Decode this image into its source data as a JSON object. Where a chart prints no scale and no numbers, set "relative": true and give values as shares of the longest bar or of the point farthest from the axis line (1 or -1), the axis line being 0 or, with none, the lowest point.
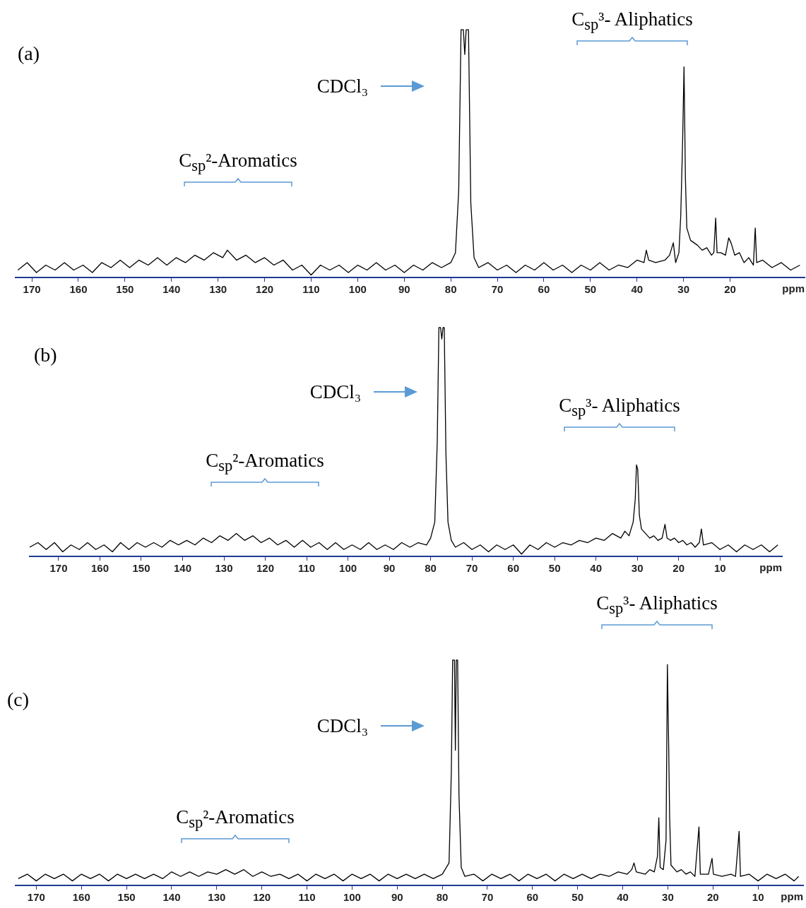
{
  "chart_data": [
    {
      "type": "line",
      "title": "(a)",
      "xlabel": "ppm",
      "relative": true,
      "marker": "none",
      "xlim": [
        173.5,
        4
      ],
      "xticks": [
        170,
        160,
        150,
        140,
        130,
        120,
        110,
        100,
        90,
        80,
        70,
        60,
        50,
        40,
        30,
        20
      ],
      "annotations": [
        "CDCl₃",
        "C$_{sp}$²-Aromatics",
        "C$_{sp}$³- Aliphatics"
      ],
      "x": [
        173,
        171,
        169,
        167,
        165,
        163,
        161,
        159,
        157,
        155,
        153,
        151,
        149,
        147,
        145,
        143,
        141,
        139,
        137,
        135,
        133,
        131,
        129,
        128,
        126,
        124,
        122,
        120,
        118,
        116,
        114,
        112,
        110,
        108,
        106,
        104,
        102,
        100,
        98,
        96,
        94,
        92,
        90,
        88,
        86,
        84,
        82,
        80,
        79,
        78.3,
        77.8,
        77.3,
        77,
        76.7,
        76.2,
        75.7,
        75,
        74,
        72,
        70,
        68,
        66,
        64,
        62,
        60,
        58,
        56,
        54,
        52,
        50,
        48,
        46,
        44,
        42,
        40,
        38.5,
        38,
        37.5,
        36,
        34,
        33,
        32.2,
        31.7,
        31,
        30.6,
        30.2,
        29.9,
        29.6,
        29.3,
        28.5,
        27,
        26,
        25,
        24,
        23.5,
        23.1,
        22.8,
        22,
        21,
        20.3,
        19.8,
        19,
        18,
        17,
        16,
        15,
        14.6,
        14.3,
        13,
        11,
        9,
        7,
        5
      ],
      "series": [
        {
          "color": "#000000",
          "values": [
            0.03,
            0.06,
            0.02,
            0.05,
            0.03,
            0.06,
            0.03,
            0.05,
            0.02,
            0.06,
            0.04,
            0.07,
            0.04,
            0.07,
            0.05,
            0.08,
            0.05,
            0.08,
            0.06,
            0.09,
            0.07,
            0.1,
            0.08,
            0.11,
            0.07,
            0.09,
            0.06,
            0.08,
            0.05,
            0.07,
            0.03,
            0.05,
            0.01,
            0.05,
            0.03,
            0.05,
            0.02,
            0.05,
            0.03,
            0.06,
            0.03,
            0.05,
            0.02,
            0.05,
            0.03,
            0.06,
            0.04,
            0.06,
            0.1,
            0.35,
            1,
            1,
            0.9,
            1,
            1,
            0.3,
            0.08,
            0.04,
            0.06,
            0.03,
            0.05,
            0.02,
            0.05,
            0.03,
            0.06,
            0.03,
            0.05,
            0.02,
            0.05,
            0.03,
            0.06,
            0.03,
            0.05,
            0.04,
            0.07,
            0.06,
            0.11,
            0.07,
            0.06,
            0.07,
            0.09,
            0.14,
            0.06,
            0.1,
            0.25,
            0.55,
            0.85,
            0.4,
            0.2,
            0.15,
            0.13,
            0.11,
            0.12,
            0.09,
            0.1,
            0.24,
            0.1,
            0.1,
            0.09,
            0.16,
            0.14,
            0.09,
            0.1,
            0.06,
            0.08,
            0.05,
            0.2,
            0.06,
            0.07,
            0.04,
            0.06,
            0.03,
            0.05
          ]
        }
      ]
    },
    {
      "type": "line",
      "title": "(b)",
      "xlabel": "ppm",
      "relative": true,
      "marker": "none",
      "xlim": [
        177,
        -5
      ],
      "xticks": [
        170,
        160,
        150,
        140,
        130,
        120,
        110,
        100,
        90,
        80,
        70,
        60,
        50,
        40,
        30,
        20,
        10
      ],
      "annotations": [
        "CDCl₃",
        "C$_{sp}$²-Aromatics",
        "C$_{sp}$³- Aliphatics"
      ],
      "x": [
        177,
        175,
        173,
        171,
        169,
        167,
        165,
        163,
        161,
        159,
        157,
        155,
        153,
        151,
        149,
        147,
        145,
        143,
        141,
        139,
        137,
        135,
        133,
        131,
        129,
        127,
        125,
        123,
        121,
        119,
        117,
        115,
        113,
        111,
        109,
        107,
        105,
        103,
        101,
        99,
        97,
        95,
        93,
        91,
        89,
        87,
        85,
        83,
        81,
        80,
        79,
        78.4,
        78,
        77.6,
        77.3,
        77,
        76.7,
        76.3,
        75.8,
        75,
        74,
        72,
        70,
        68,
        66,
        64,
        62,
        60,
        58,
        56,
        54,
        52,
        50,
        48,
        46,
        44,
        42,
        40,
        38,
        36,
        34,
        33,
        32,
        31,
        30.5,
        30.2,
        29.9,
        29.5,
        29,
        28,
        27,
        26,
        25,
        24,
        23.3,
        22.8,
        22,
        21,
        20,
        19,
        18,
        17,
        16,
        15,
        14.5,
        14,
        12,
        10,
        8,
        6,
        4,
        2,
        0,
        -2,
        -4
      ],
      "series": [
        {
          "color": "#000000",
          "values": [
            0.04,
            0.06,
            0.03,
            0.06,
            0.02,
            0.05,
            0.03,
            0.06,
            0.03,
            0.05,
            0.02,
            0.06,
            0.03,
            0.06,
            0.04,
            0.06,
            0.04,
            0.07,
            0.05,
            0.07,
            0.05,
            0.08,
            0.06,
            0.09,
            0.07,
            0.1,
            0.07,
            0.09,
            0.06,
            0.08,
            0.05,
            0.07,
            0.04,
            0.07,
            0.04,
            0.06,
            0.03,
            0.06,
            0.03,
            0.05,
            0.03,
            0.06,
            0.03,
            0.05,
            0.03,
            0.06,
            0.04,
            0.06,
            0.05,
            0.08,
            0.15,
            0.5,
            1,
            1,
            0.95,
            1,
            1,
            0.45,
            0.15,
            0.07,
            0.04,
            0.06,
            0.03,
            0.05,
            0.02,
            0.05,
            0.03,
            0.05,
            0.01,
            0.05,
            0.03,
            0.06,
            0.04,
            0.06,
            0.05,
            0.07,
            0.06,
            0.08,
            0.07,
            0.1,
            0.08,
            0.11,
            0.09,
            0.15,
            0.25,
            0.4,
            0.38,
            0.18,
            0.12,
            0.1,
            0.08,
            0.09,
            0.07,
            0.08,
            0.14,
            0.08,
            0.07,
            0.08,
            0.06,
            0.07,
            0.05,
            0.06,
            0.04,
            0.06,
            0.12,
            0.05,
            0.06,
            0.03,
            0.05,
            0.02,
            0.05,
            0.03,
            0.05,
            0.02,
            0.05
          ]
        }
      ]
    },
    {
      "type": "line",
      "title": "(c)",
      "xlabel": "ppm",
      "relative": true,
      "marker": "none",
      "xlim": [
        174.6,
        0
      ],
      "xticks": [
        170,
        160,
        150,
        140,
        130,
        120,
        110,
        100,
        90,
        80,
        70,
        60,
        50,
        40,
        30,
        20,
        10
      ],
      "annotations": [
        "CDCl₃",
        "C$_{sp}$²-Aromatics",
        "C$_{sp}$³- Aliphatics"
      ],
      "x": [
        174,
        172,
        170,
        168,
        166,
        164,
        162,
        160,
        158,
        156,
        154,
        152,
        150,
        148,
        146,
        144,
        142,
        140,
        138,
        136,
        134,
        132,
        130,
        128,
        126,
        124,
        122,
        120,
        118,
        116,
        114,
        112,
        110,
        108,
        106,
        104,
        102,
        100,
        98,
        96,
        94,
        92,
        90,
        88,
        86,
        84,
        82,
        80,
        78.5,
        78,
        77.7,
        77.3,
        77.1,
        76.9,
        76.6,
        76.3,
        75.8,
        75,
        73,
        71,
        69,
        67,
        65,
        63,
        61,
        59,
        57,
        55,
        53,
        51,
        49,
        47,
        45,
        43,
        41,
        39,
        38,
        37.5,
        37,
        35,
        34,
        33,
        32.3,
        32,
        31.7,
        31,
        30.4,
        30.1,
        29.8,
        29.6,
        29.3,
        28,
        27,
        26,
        25,
        24,
        23.1,
        22.8,
        21,
        20.2,
        19.9,
        18,
        16,
        15,
        14.2,
        13.9,
        12,
        10,
        8,
        6,
        4,
        2,
        1
      ],
      "series": [
        {
          "color": "#000000",
          "values": [
            0.03,
            0.05,
            0.02,
            0.05,
            0.03,
            0.05,
            0.02,
            0.05,
            0.03,
            0.05,
            0.02,
            0.05,
            0.03,
            0.05,
            0.03,
            0.05,
            0.03,
            0.06,
            0.04,
            0.06,
            0.04,
            0.06,
            0.05,
            0.07,
            0.05,
            0.07,
            0.04,
            0.06,
            0.04,
            0.05,
            0.03,
            0.05,
            0.02,
            0.05,
            0.03,
            0.05,
            0.02,
            0.05,
            0.03,
            0.05,
            0.02,
            0.05,
            0.03,
            0.05,
            0.03,
            0.05,
            0.03,
            0.05,
            0.1,
            0.5,
            1,
            1,
            0.6,
            1,
            1,
            0.4,
            0.08,
            0.04,
            0.05,
            0.02,
            0.05,
            0.03,
            0.05,
            0.02,
            0.05,
            0.03,
            0.05,
            0.02,
            0.05,
            0.03,
            0.05,
            0.03,
            0.05,
            0.04,
            0.06,
            0.05,
            0.07,
            0.1,
            0.06,
            0.05,
            0.07,
            0.06,
            0.13,
            0.3,
            0.08,
            0.07,
            0.2,
            0.98,
            0.6,
            0.3,
            0.09,
            0.06,
            0.07,
            0.05,
            0.06,
            0.04,
            0.26,
            0.05,
            0.05,
            0.12,
            0.05,
            0.04,
            0.05,
            0.04,
            0.24,
            0.04,
            0.05,
            0.02,
            0.05,
            0.03,
            0.05,
            0.02,
            0.04
          ]
        }
      ]
    }
  ]
}
